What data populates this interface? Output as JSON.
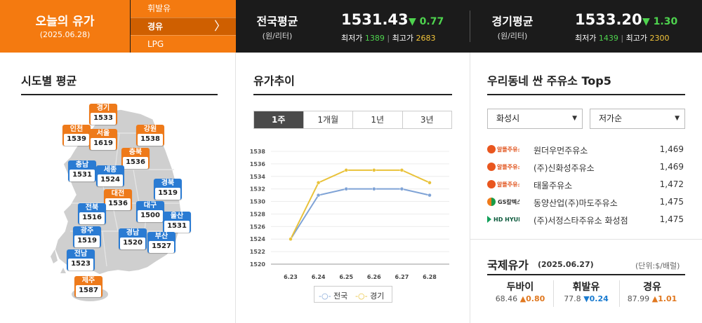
{
  "header": {
    "title": "오늘의 유가",
    "date": "(2025.06.28)",
    "fuel_menu": [
      {
        "label": "휘발유",
        "active": false
      },
      {
        "label": "경유",
        "active": true
      },
      {
        "label": "LPG",
        "active": false
      }
    ],
    "national": {
      "label": "전국평균",
      "unit": "(원/리터)",
      "price": "1531.43",
      "change": "▼ 0.77",
      "low_label": "최저가",
      "low": "1389",
      "high_label": "최고가",
      "high": "2683"
    },
    "gyeonggi": {
      "label": "경기평균",
      "unit": "(원/리터)",
      "price": "1533.20",
      "change": "▼ 1.30",
      "low_label": "최저가",
      "low": "1439",
      "high_label": "최고가",
      "high": "2300"
    }
  },
  "regional": {
    "title": "시도별 평균",
    "map_colors": {
      "land": "#cfcfcf",
      "blue": "#2a7bd3",
      "orange": "#ee7a1a"
    },
    "regions": [
      {
        "name": "경기",
        "value": "1533",
        "color": "orange"
      },
      {
        "name": "인천",
        "value": "1539",
        "color": "orange"
      },
      {
        "name": "서울",
        "value": "1619",
        "color": "orange"
      },
      {
        "name": "강원",
        "value": "1538",
        "color": "orange"
      },
      {
        "name": "충북",
        "value": "1536",
        "color": "orange"
      },
      {
        "name": "충남",
        "value": "1531",
        "color": "blue"
      },
      {
        "name": "세종",
        "value": "1524",
        "color": "blue"
      },
      {
        "name": "경북",
        "value": "1519",
        "color": "blue"
      },
      {
        "name": "대전",
        "value": "1536",
        "color": "orange"
      },
      {
        "name": "전북",
        "value": "1516",
        "color": "blue"
      },
      {
        "name": "대구",
        "value": "1500",
        "color": "blue"
      },
      {
        "name": "울산",
        "value": "1531",
        "color": "blue"
      },
      {
        "name": "광주",
        "value": "1519",
        "color": "blue"
      },
      {
        "name": "경남",
        "value": "1520",
        "color": "blue"
      },
      {
        "name": "부산",
        "value": "1527",
        "color": "blue"
      },
      {
        "name": "전남",
        "value": "1523",
        "color": "blue"
      },
      {
        "name": "제주",
        "value": "1587",
        "color": "orange"
      }
    ]
  },
  "trend": {
    "title": "유가추이",
    "tabs": [
      {
        "label": "1주",
        "active": true
      },
      {
        "label": "1개월",
        "active": false
      },
      {
        "label": "1년",
        "active": false
      },
      {
        "label": "3년",
        "active": false
      }
    ]
  },
  "chart_data": {
    "type": "line",
    "categories": [
      "6.23",
      "6.24",
      "6.25",
      "6.26",
      "6.27",
      "6.28"
    ],
    "ylim": [
      1520,
      1538
    ],
    "yticks": [
      1520,
      1522,
      1524,
      1526,
      1528,
      1530,
      1532,
      1534,
      1536,
      1538
    ],
    "grid": true,
    "legend": "bottom",
    "series": [
      {
        "name": "전국",
        "color": "#7fa3d6",
        "values": [
          1524,
          1531,
          1532,
          1532,
          1532,
          1531
        ]
      },
      {
        "name": "경기",
        "color": "#e9c23a",
        "values": [
          1524,
          1533,
          1535,
          1535,
          1535,
          1533
        ]
      }
    ]
  },
  "top5": {
    "title": "우리동네 싼 주유소 Top5",
    "region_select": "화성시",
    "sort_select": "저가순",
    "stations": [
      {
        "brand": "alttteul",
        "brand_label": "알뜰주유소",
        "name": "원더우먼주유소",
        "price": "1,469"
      },
      {
        "brand": "alttteul",
        "brand_label": "알뜰주유소",
        "name": "(주)신화성주유소",
        "price": "1,469"
      },
      {
        "brand": "alttteul",
        "brand_label": "알뜰주유소",
        "name": "태울주유소",
        "price": "1,472"
      },
      {
        "brand": "gs",
        "brand_label": "GS칼텍스",
        "name": "동양산업(주)마도주유소",
        "price": "1,475"
      },
      {
        "brand": "hd",
        "brand_label": "HD HYUNDAI OILBANK",
        "name": "(주)서정스타주유소 화성점",
        "price": "1,475"
      }
    ]
  },
  "international": {
    "title": "국제유가",
    "date": "(2025.06.27)",
    "unit": "(단위:$/배럴)",
    "items": [
      {
        "name": "두바이",
        "price": "68.46",
        "change": "▲0.80",
        "dir": "up"
      },
      {
        "name": "휘발유",
        "price": "77.8",
        "change": "▼0.24",
        "dir": "down"
      },
      {
        "name": "경유",
        "price": "87.99",
        "change": "▲1.01",
        "dir": "up"
      }
    ]
  }
}
